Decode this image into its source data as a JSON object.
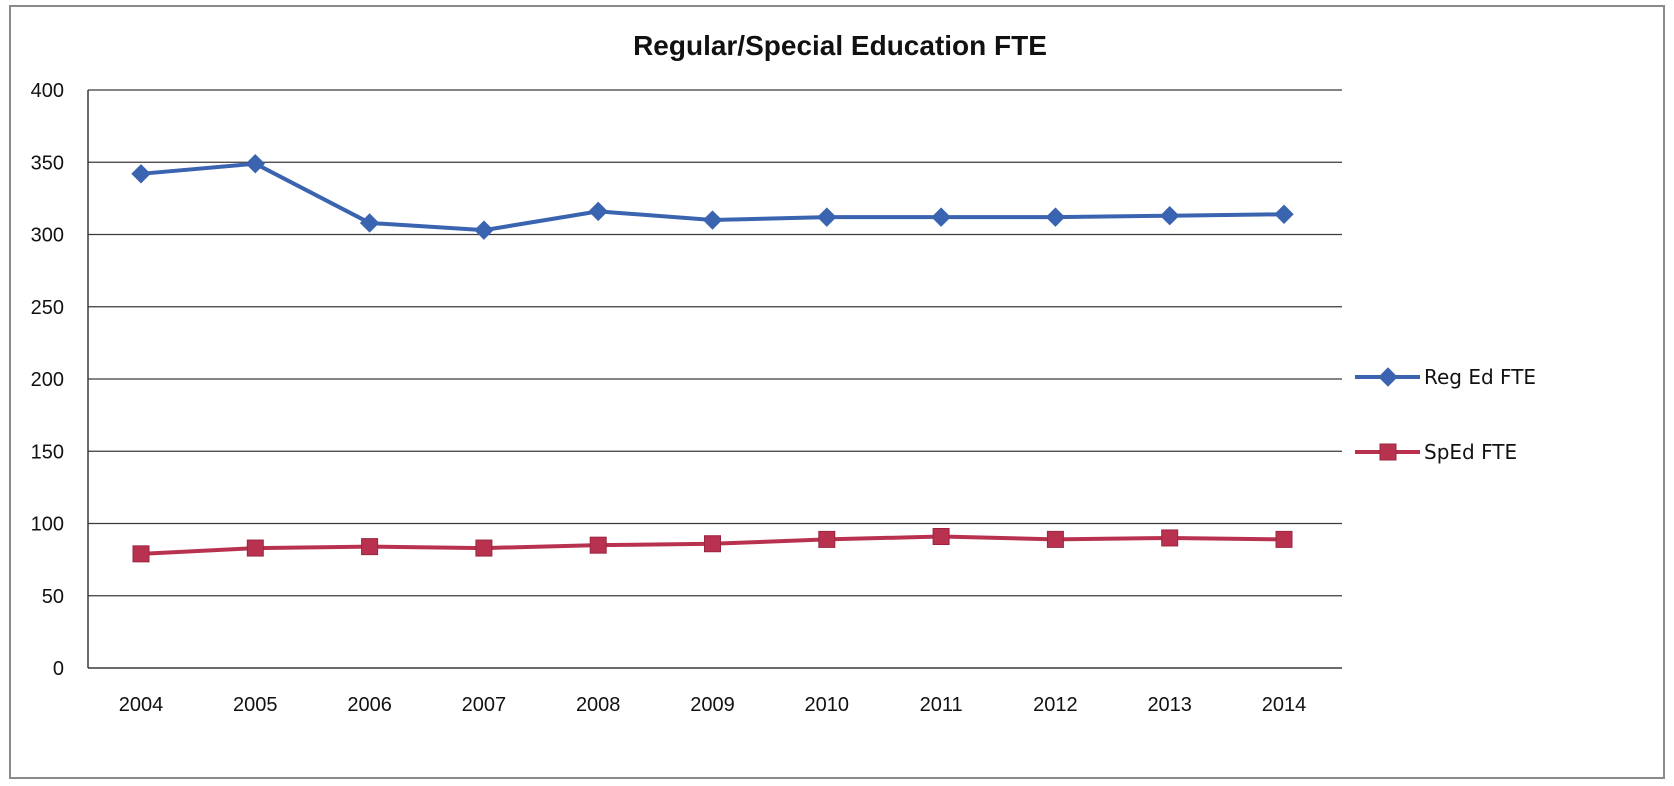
{
  "chart_data": {
    "type": "line",
    "title": "Regular/Special Education FTE",
    "xlabel": "",
    "ylabel": "",
    "categories": [
      "2004",
      "2005",
      "2006",
      "2007",
      "2008",
      "2009",
      "2010",
      "2011",
      "2012",
      "2013",
      "2014"
    ],
    "ylim": [
      0,
      400
    ],
    "yticks": [
      0,
      50,
      100,
      150,
      200,
      250,
      300,
      350,
      400
    ],
    "grid": true,
    "legend_position": "right",
    "series": [
      {
        "name": "Reg Ed FTE",
        "marker": "diamond",
        "color": "#3a63b0",
        "values": [
          342,
          349,
          308,
          303,
          316,
          310,
          312,
          312,
          312,
          313,
          314
        ]
      },
      {
        "name": "SpEd FTE",
        "marker": "square",
        "color": "#b8324f",
        "values": [
          79,
          83,
          84,
          83,
          85,
          86,
          89,
          91,
          89,
          90,
          89
        ]
      }
    ]
  }
}
